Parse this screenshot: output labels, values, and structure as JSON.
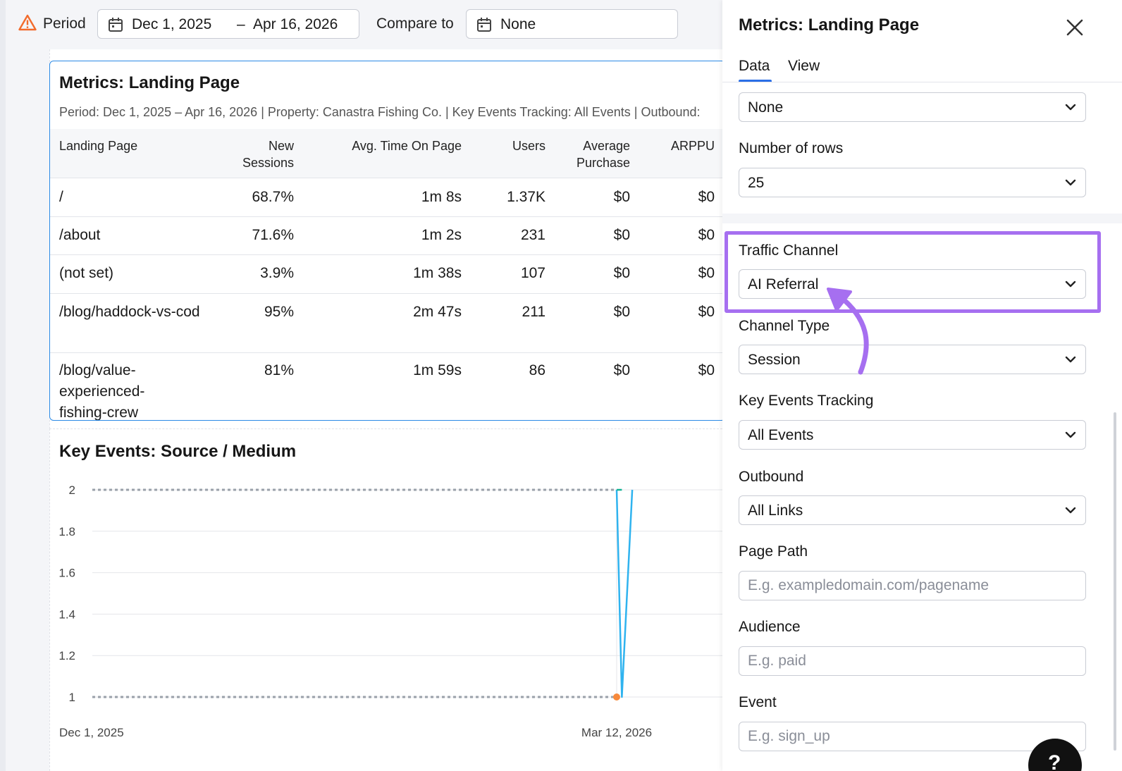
{
  "topbar": {
    "period_label": "Period",
    "date_start": "Dec 1, 2025",
    "date_sep": "–",
    "date_end": "Apr 16, 2026",
    "compare_label": "Compare to",
    "compare_value": "None",
    "warning_icon": "warning-triangle-icon",
    "calendar_icon": "calendar-icon"
  },
  "table_widget": {
    "title": "Metrics: Landing Page",
    "subtitle": "Period: Dec 1, 2025 – Apr 16, 2026 | Property: Canastra Fishing Co. | Key Events Tracking: All Events | Outbound:",
    "columns": [
      "Landing Page",
      "New Sessions",
      "Avg. Time On Page",
      "Users",
      "Average Purchase",
      "ARPPU"
    ],
    "rows": [
      [
        "/",
        "68.7%",
        "1m 8s",
        "1.37K",
        "$0",
        "$0"
      ],
      [
        "/about",
        "71.6%",
        "1m 2s",
        "231",
        "$0",
        "$0"
      ],
      [
        "(not set)",
        "3.9%",
        "1m 38s",
        "107",
        "$0",
        "$0"
      ],
      [
        "/blog/haddock-vs-cod",
        "95%",
        "2m 47s",
        "211",
        "$0",
        "$0"
      ],
      [
        "/blog/value-experienced-fishing-crew",
        "81%",
        "1m 59s",
        "86",
        "$0",
        "$0"
      ]
    ]
  },
  "chart_widget": {
    "title": "Key Events: Source / Medium"
  },
  "chart_data": {
    "type": "line",
    "title": "Key Events: Source / Medium",
    "xlabel": "",
    "ylabel": "",
    "x_ticks": [
      "Dec 1, 2025",
      "Mar 12, 2026"
    ],
    "y_ticks": [
      1,
      1.2,
      1.4,
      1.6,
      1.8,
      2
    ],
    "ylim": [
      1,
      2
    ],
    "grid": true,
    "series": [
      {
        "color": "#9aa0aa",
        "style": "dotted",
        "points": [
          {
            "x": "Dec 1, 2025",
            "y": 2
          },
          {
            "x": "Mar 12, 2026",
            "y": 2
          }
        ]
      },
      {
        "color": "#9aa0aa",
        "style": "dotted",
        "points": [
          {
            "x": "Dec 1, 2025",
            "y": 1
          },
          {
            "x": "Mar 12, 2026",
            "y": 1
          }
        ]
      },
      {
        "color": "#2fb3ef",
        "points": [
          {
            "x": "Mar 12, 2026",
            "y": 2
          },
          {
            "x": "Mar 13, 2026",
            "y": 1
          },
          {
            "x": "Mar 15, 2026",
            "y": 2
          }
        ]
      },
      {
        "color": "#14b394",
        "points": [
          {
            "x": "Mar 12, 2026",
            "y": 2
          },
          {
            "x": "Mar 13, 2026",
            "y": 2
          }
        ]
      },
      {
        "color": "#f7893b",
        "points": [
          {
            "x": "Mar 12, 2026",
            "y": 1
          }
        ]
      }
    ]
  },
  "panel": {
    "title": "Metrics: Landing Page",
    "tabs": [
      "Data",
      "View"
    ],
    "active_tab": "Data",
    "first_select": "None",
    "rows_label": "Number of rows",
    "rows_value": "25",
    "traffic_channel_label": "Traffic Channel",
    "traffic_channel_value": "AI Referral",
    "channel_type_label": "Channel Type",
    "channel_type_value": "Session",
    "key_events_label": "Key Events Tracking",
    "key_events_value": "All Events",
    "outbound_label": "Outbound",
    "outbound_value": "All Links",
    "page_path_label": "Page Path",
    "page_path_placeholder": "E.g. exampledomain.com/pagename",
    "audience_label": "Audience",
    "audience_placeholder": "E.g. paid",
    "event_label": "Event",
    "event_placeholder": "E.g. sign_up",
    "highlight_color": "#a66ff0",
    "accent_color": "#2b6fe6"
  }
}
